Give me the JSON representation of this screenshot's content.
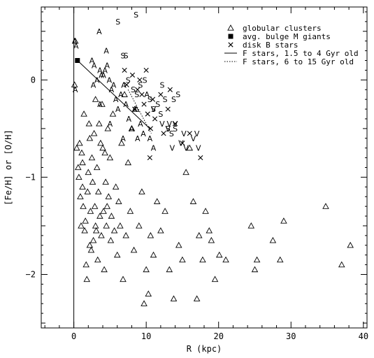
{
  "chart_data": {
    "type": "scatter",
    "xlabel": "R (kpc)",
    "ylabel": "[Fe/H] or [O/H]",
    "xlim": [
      -4.5,
      40.5
    ],
    "ylim": [
      -2.55,
      0.75
    ],
    "x_ticks": [
      0,
      10,
      20,
      30,
      40
    ],
    "y_ticks": [
      0,
      -1,
      -2
    ],
    "x_tick_labels": [
      "0",
      "10",
      "20",
      "30",
      "40"
    ],
    "y_tick_labels": [
      "0",
      "−1",
      "−2"
    ],
    "grid": false,
    "legend_position": "top-right",
    "legend": [
      {
        "label": "globular clusters",
        "marker": "triangle"
      },
      {
        "label": "avg. bulge M giants",
        "marker": "filled-square"
      },
      {
        "label": "disk B stars",
        "marker": "cross"
      },
      {
        "label": "F stars, 1.5 to 4 Gyr old",
        "marker": "solid-line"
      },
      {
        "label": "F stars, 6 to 15 Gyr old",
        "marker": "dotted-line"
      }
    ],
    "series": [
      {
        "name": "globular clusters",
        "marker": "triangle",
        "points": [
          [
            0.1,
            -0.05
          ],
          [
            0.2,
            0.4
          ],
          [
            0.4,
            -0.7
          ],
          [
            0.6,
            -0.9
          ],
          [
            0.7,
            -1.0
          ],
          [
            0.8,
            -0.65
          ],
          [
            0.9,
            -1.2
          ],
          [
            1.0,
            -1.5
          ],
          [
            1.1,
            -0.75
          ],
          [
            1.2,
            -0.85
          ],
          [
            1.2,
            -1.1
          ],
          [
            1.3,
            -1.3
          ],
          [
            1.4,
            -0.35
          ],
          [
            1.5,
            -1.55
          ],
          [
            1.6,
            -1.45
          ],
          [
            1.7,
            -1.9
          ],
          [
            1.8,
            -2.05
          ],
          [
            1.9,
            -1.15
          ],
          [
            2.0,
            -0.95
          ],
          [
            2.1,
            -0.45
          ],
          [
            2.2,
            -1.7
          ],
          [
            2.2,
            -0.6
          ],
          [
            2.3,
            -1.35
          ],
          [
            2.4,
            -1.75
          ],
          [
            2.5,
            -0.8
          ],
          [
            2.6,
            -1.05
          ],
          [
            2.7,
            -1.65
          ],
          [
            2.8,
            -0.55
          ],
          [
            2.9,
            -1.3
          ],
          [
            3.0,
            -0.2
          ],
          [
            3.0,
            -1.5
          ],
          [
            3.1,
            -1.55
          ],
          [
            3.2,
            -0.9
          ],
          [
            3.3,
            -1.85
          ],
          [
            3.4,
            -1.15
          ],
          [
            3.5,
            -0.45
          ],
          [
            3.6,
            -1.4
          ],
          [
            3.7,
            -0.65
          ],
          [
            3.8,
            -1.6
          ],
          [
            3.9,
            -0.25
          ],
          [
            4.0,
            -0.7
          ],
          [
            4.1,
            -1.35
          ],
          [
            4.2,
            -1.95
          ],
          [
            4.3,
            -0.75
          ],
          [
            4.4,
            -1.05
          ],
          [
            4.5,
            -1.5
          ],
          [
            4.6,
            -1.3
          ],
          [
            4.7,
            -0.5
          ],
          [
            4.8,
            -1.2
          ],
          [
            5.0,
            -0.8
          ],
          [
            5.1,
            -1.65
          ],
          [
            5.2,
            -1.4
          ],
          [
            5.4,
            -0.35
          ],
          [
            5.6,
            -1.55
          ],
          [
            5.8,
            -1.1
          ],
          [
            6.0,
            -1.8
          ],
          [
            6.2,
            -1.25
          ],
          [
            6.4,
            -1.5
          ],
          [
            6.6,
            -0.65
          ],
          [
            6.8,
            -2.05
          ],
          [
            7.0,
            -0.15
          ],
          [
            7.2,
            -1.6
          ],
          [
            7.5,
            -0.85
          ],
          [
            7.8,
            -1.35
          ],
          [
            8.0,
            -0.5
          ],
          [
            8.3,
            -1.75
          ],
          [
            8.6,
            -0.3
          ],
          [
            9.0,
            -1.5
          ],
          [
            9.4,
            -1.15
          ],
          [
            9.7,
            -2.3
          ],
          [
            10.0,
            -1.95
          ],
          [
            10.3,
            -2.2
          ],
          [
            10.6,
            -1.6
          ],
          [
            11.0,
            -1.8
          ],
          [
            11.5,
            -1.25
          ],
          [
            12.0,
            -1.55
          ],
          [
            12.6,
            -1.35
          ],
          [
            13.2,
            -1.95
          ],
          [
            13.8,
            -2.25
          ],
          [
            14.5,
            -1.7
          ],
          [
            15.0,
            -1.85
          ],
          [
            15.5,
            -0.95
          ],
          [
            16.0,
            -0.7
          ],
          [
            16.5,
            -1.25
          ],
          [
            17.0,
            -2.25
          ],
          [
            17.3,
            -1.6
          ],
          [
            17.8,
            -1.85
          ],
          [
            18.2,
            -1.35
          ],
          [
            18.7,
            -1.55
          ],
          [
            19.0,
            -1.65
          ],
          [
            19.5,
            -2.05
          ],
          [
            20.1,
            -1.8
          ],
          [
            21.0,
            -1.85
          ],
          [
            24.5,
            -1.5
          ],
          [
            25.0,
            -1.95
          ],
          [
            25.3,
            -1.85
          ],
          [
            27.5,
            -1.65
          ],
          [
            28.5,
            -1.85
          ],
          [
            29.0,
            -1.45
          ],
          [
            34.8,
            -1.3
          ],
          [
            37.0,
            -1.9
          ],
          [
            38.2,
            -1.7
          ]
        ]
      },
      {
        "name": "avg. bulge M giants",
        "marker": "filled-square",
        "points": [
          [
            0.5,
            0.2
          ]
        ]
      },
      {
        "name": "disk B stars",
        "marker": "cross",
        "points": [
          [
            7.0,
            0.1
          ],
          [
            7.3,
            -0.05
          ],
          [
            8.1,
            0.05
          ],
          [
            8.4,
            -0.3
          ],
          [
            8.8,
            -0.1
          ],
          [
            9.1,
            0.0
          ],
          [
            9.4,
            -0.15
          ],
          [
            9.7,
            -0.25
          ],
          [
            10.0,
            0.1
          ],
          [
            10.2,
            -0.35
          ],
          [
            10.6,
            -0.5
          ],
          [
            10.9,
            -0.2
          ],
          [
            11.2,
            -0.4
          ],
          [
            12.0,
            -0.15
          ],
          [
            12.4,
            -0.55
          ],
          [
            13.0,
            -0.3
          ],
          [
            13.3,
            -0.1
          ],
          [
            14.0,
            -0.45
          ],
          [
            15.0,
            -0.65
          ],
          [
            16.0,
            -0.55
          ],
          [
            17.5,
            -0.8
          ],
          [
            10.5,
            -0.8
          ]
        ]
      }
    ],
    "letter_points": [
      {
        "symbol": "A",
        "points": [
          [
            0.1,
            0.4
          ],
          [
            0.3,
            0.35
          ],
          [
            0.2,
            -0.1
          ],
          [
            3.5,
            0.5
          ],
          [
            2.5,
            0.2
          ],
          [
            2.8,
            0.15
          ],
          [
            3.2,
            0.0
          ],
          [
            3.6,
            0.1
          ],
          [
            3.8,
            0.05
          ],
          [
            4.1,
            0.05
          ],
          [
            4.3,
            0.1
          ],
          [
            4.6,
            0.15
          ],
          [
            4.9,
            0.0
          ],
          [
            5.2,
            -0.1
          ],
          [
            5.5,
            -0.05
          ],
          [
            5.8,
            -0.2
          ],
          [
            6.1,
            -0.3
          ],
          [
            6.5,
            -0.15
          ],
          [
            6.9,
            -0.05
          ],
          [
            7.2,
            -0.25
          ],
          [
            7.6,
            -0.4
          ],
          [
            8.0,
            -0.5
          ],
          [
            8.4,
            -0.3
          ],
          [
            8.8,
            -0.6
          ],
          [
            9.2,
            -0.45
          ],
          [
            9.6,
            -0.55
          ],
          [
            10.1,
            -0.15
          ],
          [
            10.5,
            -0.6
          ],
          [
            11.0,
            -0.7
          ],
          [
            3.6,
            -0.25
          ],
          [
            2.7,
            -0.05
          ],
          [
            4.5,
            0.3
          ],
          [
            5.0,
            -0.45
          ],
          [
            6.8,
            -0.6
          ]
        ]
      },
      {
        "symbol": "S",
        "points": [
          [
            8.6,
            0.67
          ],
          [
            6.1,
            0.6
          ],
          [
            6.8,
            0.25
          ],
          [
            7.2,
            0.25
          ],
          [
            7.5,
            0.0
          ],
          [
            8.2,
            -0.1
          ],
          [
            8.7,
            -0.15
          ],
          [
            9.2,
            -0.05
          ],
          [
            9.8,
            0.0
          ],
          [
            10.5,
            -0.2
          ],
          [
            11.0,
            -0.3
          ],
          [
            11.6,
            -0.25
          ],
          [
            12.0,
            -0.35
          ],
          [
            12.6,
            -0.2
          ],
          [
            13.0,
            -0.5
          ],
          [
            13.5,
            -0.55
          ],
          [
            14.0,
            -0.5
          ],
          [
            14.4,
            -0.15
          ],
          [
            13.8,
            -0.2
          ],
          [
            12.2,
            -0.05
          ]
        ]
      },
      {
        "symbol": "V",
        "points": [
          [
            11.0,
            -0.3
          ],
          [
            12.2,
            -0.45
          ],
          [
            13.2,
            -0.45
          ],
          [
            13.0,
            -0.5
          ],
          [
            14.0,
            -0.45
          ],
          [
            15.2,
            -0.55
          ],
          [
            15.5,
            -0.7
          ],
          [
            16.5,
            -0.6
          ],
          [
            17.0,
            -0.55
          ],
          [
            17.2,
            -0.7
          ],
          [
            14.8,
            -0.65
          ],
          [
            13.6,
            -0.7
          ]
        ]
      }
    ],
    "lines": [
      {
        "name": "F stars, 1.5 to 4 Gyr old",
        "style": "solid",
        "points": [
          [
            0.5,
            0.2
          ],
          [
            10.5,
            -0.5
          ]
        ]
      },
      {
        "name": "F stars, 6 to 15 Gyr old",
        "style": "dotted",
        "points": [
          [
            7.5,
            -0.1
          ],
          [
            10.7,
            -0.55
          ]
        ]
      }
    ]
  }
}
